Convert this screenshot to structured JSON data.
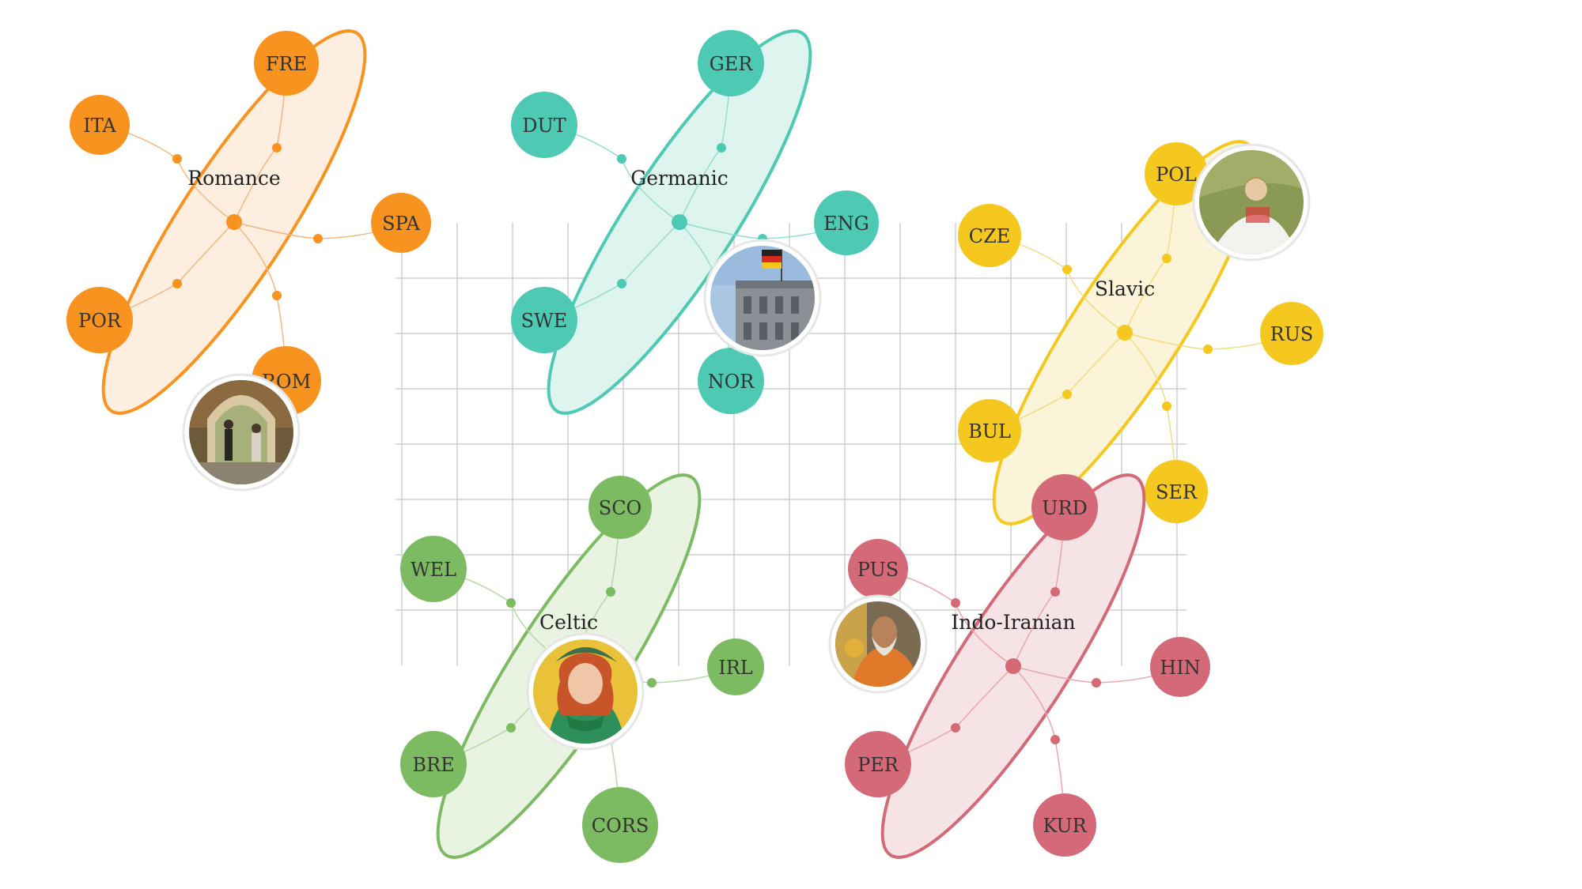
{
  "diagram": {
    "groups": [
      {
        "id": "romance",
        "name": "Romance",
        "color": "#f7931e",
        "fill": "#fdeee0",
        "nodes": [
          {
            "id": "fre",
            "label": "FRE"
          },
          {
            "id": "ita",
            "label": "ITA"
          },
          {
            "id": "spa",
            "label": "SPA"
          },
          {
            "id": "por",
            "label": "POR"
          },
          {
            "id": "rom",
            "label": "ROM"
          }
        ],
        "photo": {
          "subject": "two people walking under a stone arch",
          "icon": "photo-street-arch"
        }
      },
      {
        "id": "germanic",
        "name": "Germanic",
        "color": "#4ec9b4",
        "fill": "#def4ef",
        "nodes": [
          {
            "id": "ger",
            "label": "GER"
          },
          {
            "id": "dut",
            "label": "DUT"
          },
          {
            "id": "eng",
            "label": "ENG"
          },
          {
            "id": "swe",
            "label": "SWE"
          },
          {
            "id": "nor",
            "label": "NOR"
          }
        ],
        "photo": {
          "subject": "building with German flag",
          "icon": "photo-reichstag-flag"
        }
      },
      {
        "id": "slavic",
        "name": "Slavic",
        "color": "#f5c820",
        "fill": "#fbf4d8",
        "nodes": [
          {
            "id": "pol",
            "label": "POL"
          },
          {
            "id": "cze",
            "label": "CZE"
          },
          {
            "id": "rus",
            "label": "RUS"
          },
          {
            "id": "bul",
            "label": "BUL"
          },
          {
            "id": "ser",
            "label": "SER"
          }
        ],
        "photo": {
          "subject": "woman in folk dress in a field",
          "icon": "photo-folk-woman"
        }
      },
      {
        "id": "celtic",
        "name": "Celtic",
        "color": "#7dbb63",
        "fill": "#e8f3e2",
        "nodes": [
          {
            "id": "sco",
            "label": "SCO"
          },
          {
            "id": "wel",
            "label": "WEL"
          },
          {
            "id": "irl",
            "label": "IRL"
          },
          {
            "id": "bre",
            "label": "BRE"
          },
          {
            "id": "cors",
            "label": "CORS"
          }
        ],
        "photo": {
          "subject": "woman with red hair and green scarf",
          "icon": "photo-red-hair-woman"
        }
      },
      {
        "id": "indoiranian",
        "name": "Indo-Iranian",
        "color": "#d46a77",
        "fill": "#f6e3e5",
        "nodes": [
          {
            "id": "urd",
            "label": "URD"
          },
          {
            "id": "pus",
            "label": "PUS"
          },
          {
            "id": "hin",
            "label": "HIN"
          },
          {
            "id": "per",
            "label": "PER"
          },
          {
            "id": "kur",
            "label": "KUR"
          }
        ],
        "photo": {
          "subject": "elderly monk in orange robe",
          "icon": "photo-monk"
        }
      }
    ]
  }
}
